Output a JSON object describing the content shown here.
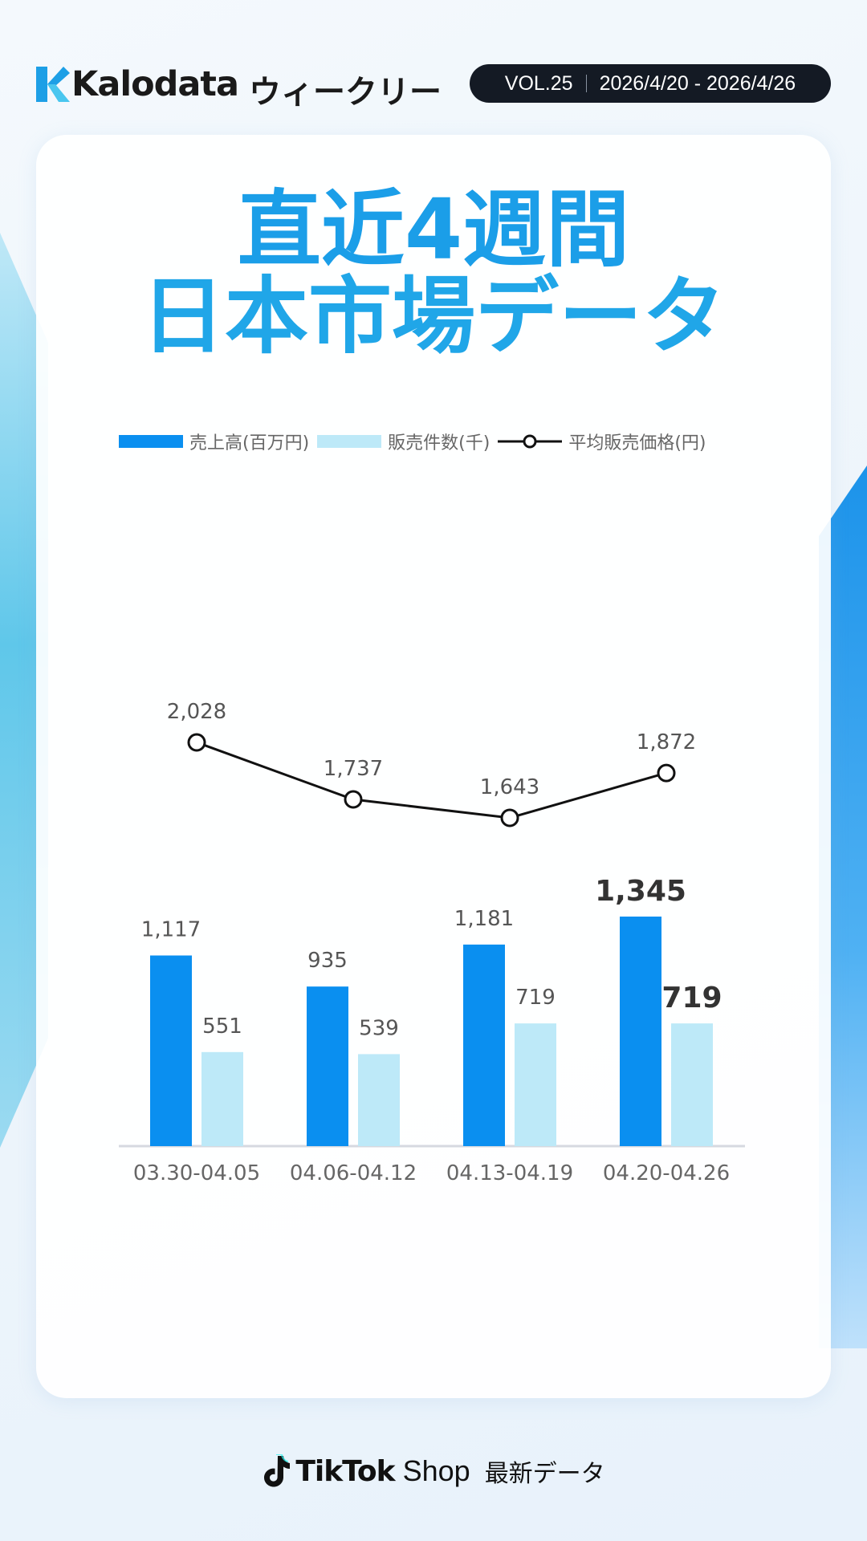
{
  "header": {
    "brand": "Kalodata",
    "weekly": "ウィークリー",
    "vol": "VOL.25",
    "date_range": "2026/4/20 - 2026/4/26"
  },
  "title": {
    "line1": "直近4週間",
    "line2": "日本市場データ"
  },
  "legend": {
    "sales": "売上高(百万円)",
    "units": "販売件数(千)",
    "avg_price": "平均販売価格(円)"
  },
  "colors": {
    "sales": "#0a8ff0",
    "units": "#bde9f8",
    "line": "#111111",
    "title": "#1b9ee8"
  },
  "chart_data": {
    "type": "bar",
    "categories": [
      "03.30-04.05",
      "04.06-04.12",
      "04.13-04.19",
      "04.20-04.26"
    ],
    "series": [
      {
        "name": "売上高(百万円)",
        "type": "bar",
        "values": [
          1117,
          935,
          1181,
          1345
        ],
        "labels": [
          "1,117",
          "935",
          "1,181",
          "1,345"
        ]
      },
      {
        "name": "販売件数(千)",
        "type": "bar",
        "values": [
          551,
          539,
          719,
          719
        ],
        "labels": [
          "551",
          "539",
          "719",
          "719"
        ]
      },
      {
        "name": "平均販売価格(円)",
        "type": "line",
        "values": [
          2028,
          1737,
          1643,
          1872
        ],
        "labels": [
          "2,028",
          "1,737",
          "1,643",
          "1,872"
        ]
      }
    ],
    "title": "",
    "xlabel": "",
    "ylabel": "",
    "ylim": [
      0,
      1345
    ],
    "grid": false,
    "legend_position": "top"
  },
  "footer": {
    "brand": "TikTok",
    "shop": "Shop",
    "latest": "最新データ"
  }
}
